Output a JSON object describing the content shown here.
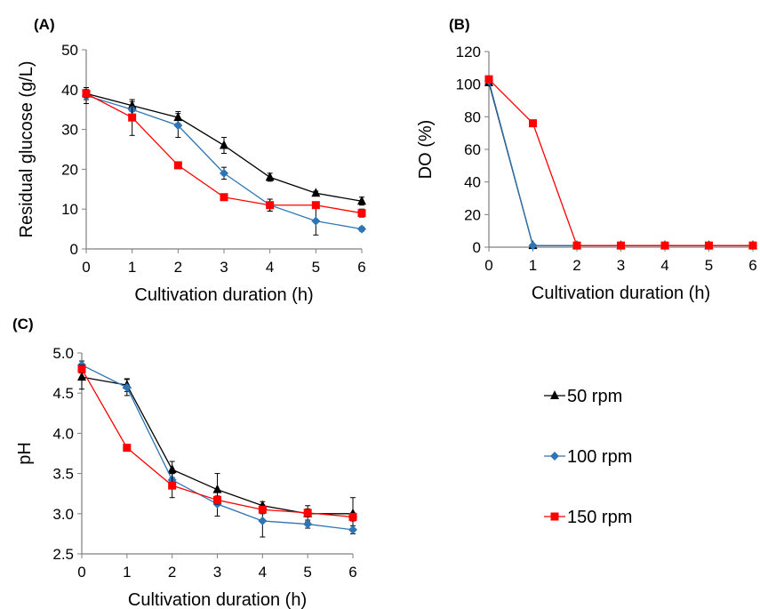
{
  "chart_data": [
    {
      "panel_label": "(A)",
      "type": "line",
      "xlabel": "Cultivation duration (h)",
      "ylabel": "Residual glucose (g/L)",
      "x": [
        0,
        1,
        2,
        3,
        4,
        5,
        6
      ],
      "xlim": [
        0,
        6
      ],
      "ylim": [
        0,
        50
      ],
      "yticks": [
        0,
        10,
        20,
        30,
        40,
        50
      ],
      "grid": false,
      "series": [
        {
          "name": "50 rpm",
          "marker": "triangle",
          "color": "#000000",
          "values": [
            39,
            36,
            33,
            26,
            18,
            14,
            12
          ],
          "err": [
            1.5,
            1.5,
            1.5,
            2,
            1,
            0.5,
            1
          ]
        },
        {
          "name": "100 rpm",
          "marker": "diamond",
          "color": "#2e75b6",
          "values": [
            38.5,
            35,
            31,
            19,
            11,
            7,
            5
          ],
          "err": [
            2,
            2,
            3,
            1.5,
            1.5,
            3.5,
            0.5
          ]
        },
        {
          "name": "150 rpm",
          "marker": "square",
          "color": "#ff0000",
          "values": [
            39,
            33,
            21,
            13,
            11,
            11,
            9
          ],
          "err": [
            1,
            4.5,
            0.5,
            0.5,
            1.5,
            0.5,
            1
          ]
        }
      ]
    },
    {
      "panel_label": "(B)",
      "type": "line",
      "xlabel": "Cultivation duration (h)",
      "ylabel": "DO (%)",
      "x": [
        0,
        1,
        2,
        3,
        4,
        5,
        6
      ],
      "xlim": [
        0,
        6
      ],
      "ylim": [
        0,
        120
      ],
      "yticks": [
        0,
        20,
        40,
        60,
        80,
        100,
        120
      ],
      "grid": false,
      "series": [
        {
          "name": "50 rpm",
          "marker": "triangle",
          "color": "#000000",
          "values": [
            101,
            1,
            1,
            1,
            1,
            1,
            1
          ],
          "err": [
            0,
            0,
            0,
            0,
            0,
            0,
            0
          ]
        },
        {
          "name": "100 rpm",
          "marker": "diamond",
          "color": "#2e75b6",
          "values": [
            102,
            1,
            1,
            1,
            1,
            1,
            1
          ],
          "err": [
            0,
            0,
            0,
            0,
            0,
            0,
            0
          ]
        },
        {
          "name": "150 rpm",
          "marker": "square",
          "color": "#ff0000",
          "values": [
            103,
            76,
            1,
            1,
            1,
            1,
            1
          ],
          "err": [
            0,
            0,
            0,
            0,
            0,
            0,
            0
          ]
        }
      ]
    },
    {
      "panel_label": "(C)",
      "type": "line",
      "xlabel": "Cultivation duration (h)",
      "ylabel": "pH",
      "x": [
        0,
        1,
        2,
        3,
        4,
        5,
        6
      ],
      "xlim": [
        0,
        6
      ],
      "ylim": [
        2.5,
        5.0
      ],
      "yticks": [
        2.5,
        3.0,
        3.5,
        4.0,
        4.5,
        5.0
      ],
      "ytick_decimals": 1,
      "grid": false,
      "series": [
        {
          "name": "50 rpm",
          "marker": "triangle",
          "color": "#000000",
          "values": [
            4.7,
            4.6,
            3.55,
            3.3,
            3.1,
            3.0,
            3.0
          ],
          "err": [
            0.15,
            0.08,
            0.1,
            0.2,
            0.05,
            0.1,
            0.2
          ]
        },
        {
          "name": "100 rpm",
          "marker": "diamond",
          "color": "#2e75b6",
          "values": [
            4.85,
            4.57,
            3.42,
            3.12,
            2.91,
            2.87,
            2.8
          ],
          "err": [
            0.05,
            0.1,
            0.08,
            0.15,
            0.2,
            0.05,
            0.05
          ]
        },
        {
          "name": "150 rpm",
          "marker": "square",
          "color": "#ff0000",
          "values": [
            4.8,
            3.82,
            3.35,
            3.17,
            3.05,
            3.01,
            2.96
          ],
          "err": [
            0.05,
            0.02,
            0.15,
            0.05,
            0.05,
            0.05,
            0.05
          ]
        }
      ]
    }
  ],
  "legend": {
    "items": [
      {
        "label": "50 rpm",
        "marker": "triangle",
        "color": "#000000"
      },
      {
        "label": "100 rpm",
        "marker": "diamond",
        "color": "#2e75b6"
      },
      {
        "label": "150 rpm",
        "marker": "square",
        "color": "#ff0000"
      }
    ]
  }
}
